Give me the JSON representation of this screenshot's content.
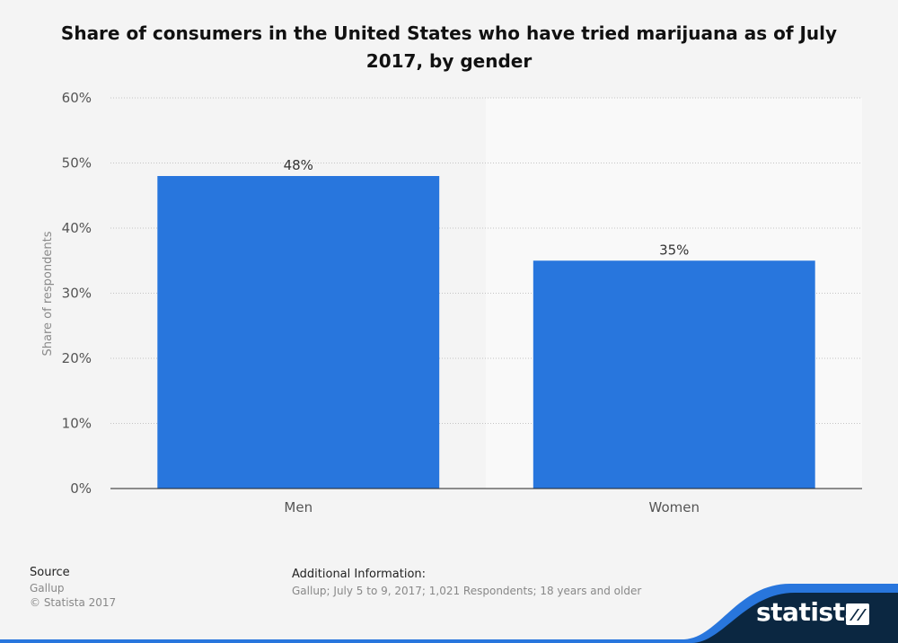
{
  "title": "Share of consumers in the United States who have tried marijuana as of July 2017, by gender",
  "chart_data": {
    "type": "bar",
    "categories": [
      "Men",
      "Women"
    ],
    "values": [
      48,
      35
    ],
    "value_labels": [
      "48%",
      "35%"
    ],
    "ylabel": "Share of respondents",
    "xlabel": "",
    "ylim": [
      0,
      60
    ],
    "yticks": [
      0,
      10,
      20,
      30,
      40,
      50,
      60
    ],
    "ytick_labels": [
      "0%",
      "10%",
      "20%",
      "30%",
      "40%",
      "50%",
      "60%"
    ],
    "grid": true,
    "bar_color": "#2876dd"
  },
  "footer": {
    "source_heading": "Source",
    "source_name": "Gallup",
    "copyright": "© Statista 2017",
    "additional_heading": "Additional Information:",
    "additional_text": "Gallup; July 5 to 9, 2017; 1,021 Respondents; 18 years and older"
  },
  "brand": {
    "name": "statista",
    "icon": "statista-logo-icon",
    "color_dark": "#0b2741",
    "color_accent": "#2876dd"
  }
}
